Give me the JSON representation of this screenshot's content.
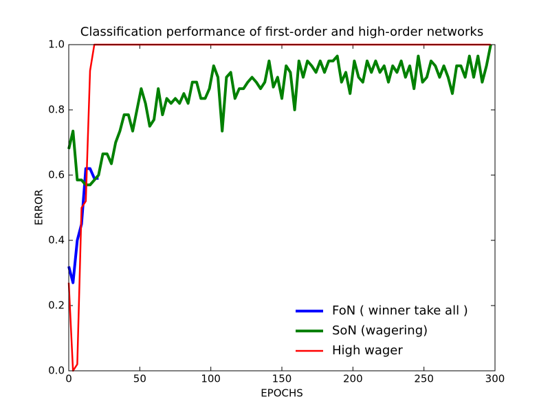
{
  "chart_data": {
    "type": "line",
    "title": "Classification performance of first-order and high-order networks",
    "x_label": "EPOCHS",
    "y_label": "ERROR",
    "xlim": [
      0,
      300
    ],
    "ylim": [
      0,
      1.0
    ],
    "xticks": [
      0,
      50,
      100,
      150,
      200,
      250,
      300
    ],
    "yticks": [
      {
        "value": 0,
        "label": "0.0"
      },
      0.2,
      0.4,
      0.6,
      0.8,
      {
        "value": 1,
        "label": "1.0"
      }
    ],
    "legend": "lower right",
    "series": [
      {
        "name": "FoN ( winner take all )",
        "color": "#0000ff",
        "x": [
          0,
          3,
          6,
          9,
          12,
          15,
          18,
          21
        ],
        "values": [
          0.32,
          0.27,
          0.4,
          0.45,
          0.62,
          0.62,
          0.59,
          0.59
        ]
      },
      {
        "name": "SoN (wagering)",
        "color": "#008000",
        "x": [
          0,
          3,
          6,
          9,
          12,
          15,
          18,
          21,
          24,
          27,
          30,
          33,
          36,
          39,
          42,
          45,
          48,
          51,
          54,
          57,
          60,
          63,
          66,
          69,
          72,
          75,
          78,
          81,
          84,
          87,
          90,
          93,
          96,
          99,
          102,
          105,
          108,
          111,
          114,
          117,
          120,
          123,
          126,
          129,
          132,
          135,
          138,
          141,
          144,
          147,
          150,
          153,
          156,
          159,
          162,
          165,
          168,
          171,
          174,
          177,
          180,
          183,
          186,
          189,
          192,
          195,
          198,
          201,
          204,
          207,
          210,
          213,
          216,
          219,
          222,
          225,
          228,
          231,
          234,
          237,
          240,
          243,
          246,
          249,
          252,
          255,
          258,
          261,
          264,
          267,
          270,
          273,
          276,
          279,
          282,
          285,
          288,
          291,
          294,
          297
        ],
        "values": [
          0.68,
          0.735,
          0.585,
          0.585,
          0.57,
          0.57,
          0.585,
          0.6,
          0.665,
          0.665,
          0.635,
          0.7,
          0.735,
          0.785,
          0.785,
          0.735,
          0.8,
          0.865,
          0.82,
          0.75,
          0.77,
          0.865,
          0.785,
          0.835,
          0.82,
          0.835,
          0.82,
          0.85,
          0.82,
          0.885,
          0.885,
          0.835,
          0.835,
          0.865,
          0.935,
          0.9,
          0.735,
          0.9,
          0.915,
          0.835,
          0.865,
          0.865,
          0.885,
          0.9,
          0.885,
          0.865,
          0.885,
          0.95,
          0.87,
          0.9,
          0.835,
          0.935,
          0.915,
          0.8,
          0.95,
          0.9,
          0.95,
          0.935,
          0.915,
          0.95,
          0.915,
          0.95,
          0.95,
          0.965,
          0.885,
          0.915,
          0.85,
          0.95,
          0.9,
          0.885,
          0.95,
          0.915,
          0.95,
          0.915,
          0.935,
          0.885,
          0.935,
          0.915,
          0.95,
          0.9,
          0.935,
          0.865,
          0.965,
          0.885,
          0.9,
          0.95,
          0.935,
          0.9,
          0.935,
          0.9,
          0.85,
          0.935,
          0.935,
          0.9,
          0.965,
          0.9,
          0.965,
          0.885,
          0.935,
          1.0
        ]
      },
      {
        "name": "High wager",
        "color": "#ff0000",
        "x": [
          0,
          3,
          6,
          9,
          12,
          15,
          18,
          297
        ],
        "values": [
          0.27,
          0,
          0.02,
          0.5,
          0.52,
          0.92,
          1.0,
          1.0
        ]
      }
    ]
  }
}
